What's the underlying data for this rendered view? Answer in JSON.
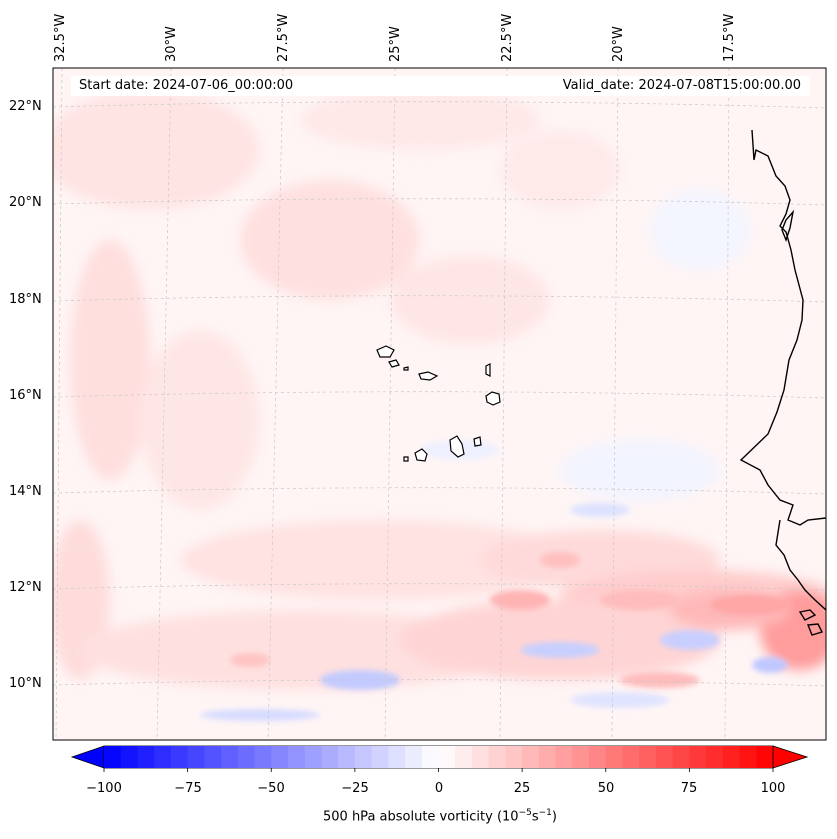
{
  "map": {
    "start_date": "Start date: 2024-07-06_00:00:00",
    "valid_date": "Valid_date: 2024-07-08T15:00:00.00",
    "longitude_labels": [
      "32.5°W",
      "30°W",
      "27.5°W",
      "25°W",
      "22.5°W",
      "20°W",
      "17.5°W"
    ],
    "latitude_labels": [
      "22°N",
      "20°N",
      "18°N",
      "16°N",
      "14°N",
      "12°N",
      "10°N"
    ],
    "colorbar": {
      "ticks": [
        "−100",
        "−75",
        "−50",
        "−25",
        "0",
        "25",
        "50",
        "75",
        "100"
      ],
      "tick_values": [
        -100,
        -75,
        -50,
        -25,
        0,
        25,
        50,
        75,
        100
      ],
      "label_prefix": "500 hPa absolute vorticity (10",
      "label_exp1": "−5",
      "label_mid": "s",
      "label_exp2": "−1",
      "label_suffix": ")",
      "min_color": "#0000ff",
      "mid_color": "#ffffff",
      "max_color": "#ff0000",
      "levels": 40
    },
    "colors": {
      "coastline": "#000000",
      "gridline": "#c8c8c8",
      "positive_shade": "#ffd6d6",
      "negative_shade": "#c9d0ff"
    }
  }
}
